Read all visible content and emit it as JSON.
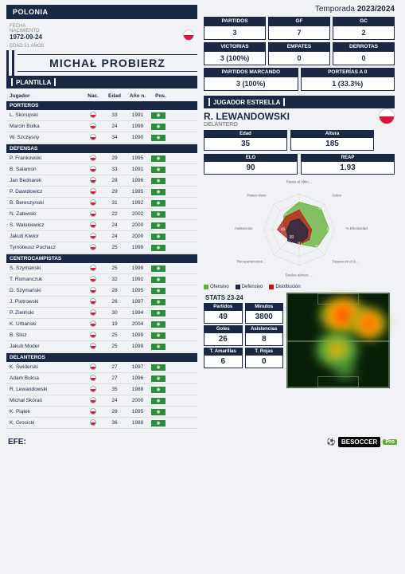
{
  "team": {
    "name": "POLONIA"
  },
  "coach": {
    "birth_label": "FECHA\nNACIMIENTO",
    "birth": "1972-09-24",
    "age_label": "EDAD",
    "age": "51 AÑOS",
    "name": "MICHAŁ PROBIERZ"
  },
  "season": {
    "label": "Temporada",
    "value": "2023/2024"
  },
  "team_stats": {
    "row1": [
      {
        "label": "PARTIDOS",
        "value": "3"
      },
      {
        "label": "GF",
        "value": "7"
      },
      {
        "label": "GC",
        "value": "2"
      }
    ],
    "row2": [
      {
        "label": "VICTORIAS",
        "value": "3 (100%)"
      },
      {
        "label": "EMPATES",
        "value": "0"
      },
      {
        "label": "DERROTAS",
        "value": "0"
      }
    ],
    "row3": [
      {
        "label": "PARTIDOS MARCANDO",
        "value": "3 (100%)"
      },
      {
        "label": "PORTERÍAS A 0",
        "value": "1 (33.3%)"
      }
    ]
  },
  "squad": {
    "title": "PLANTILLA",
    "headers": {
      "player": "Jugador",
      "nat": "Nac.",
      "age": "Edad",
      "year": "Año n.",
      "pos": "Pos."
    },
    "porteros": {
      "label": "PORTEROS",
      "players": [
        {
          "name": "L. Skorupski",
          "age": "33",
          "year": "1991"
        },
        {
          "name": "Marcin Bulka",
          "age": "24",
          "year": "1999"
        },
        {
          "name": "W. Szczęsny",
          "age": "34",
          "year": "1990"
        }
      ]
    },
    "defensas": {
      "label": "DEFENSAS",
      "players": [
        {
          "name": "P. Frankowski",
          "age": "29",
          "year": "1995"
        },
        {
          "name": "B. Salamon",
          "age": "33",
          "year": "1991"
        },
        {
          "name": "Jan Bednarek",
          "age": "28",
          "year": "1996"
        },
        {
          "name": "P. Dawidowicz",
          "age": "29",
          "year": "1995"
        },
        {
          "name": "B. Bereszynski",
          "age": "31",
          "year": "1992"
        },
        {
          "name": "N. Zalewski",
          "age": "22",
          "year": "2002"
        },
        {
          "name": "S. Walukiewicz",
          "age": "24",
          "year": "2000"
        },
        {
          "name": "Jakub Kiwior",
          "age": "24",
          "year": "2000"
        },
        {
          "name": "Tymoteusz Puchacz",
          "age": "25",
          "year": "1999"
        }
      ]
    },
    "centro": {
      "label": "CENTROCAMPISTAS",
      "players": [
        {
          "name": "S. Szymanski",
          "age": "25",
          "year": "1999"
        },
        {
          "name": "T. Romanczuk",
          "age": "32",
          "year": "1991"
        },
        {
          "name": "D. Szymański",
          "age": "28",
          "year": "1995"
        },
        {
          "name": "J. Piotrowski",
          "age": "26",
          "year": "1997"
        },
        {
          "name": "P. Zieliński",
          "age": "30",
          "year": "1994"
        },
        {
          "name": "K. Urbanski",
          "age": "19",
          "year": "2004"
        },
        {
          "name": "B. Slisz",
          "age": "25",
          "year": "1999"
        },
        {
          "name": "Jakub Moder",
          "age": "25",
          "year": "1999"
        }
      ]
    },
    "delanteros": {
      "label": "DELANTEROS",
      "players": [
        {
          "name": "K. Świderski",
          "age": "27",
          "year": "1997"
        },
        {
          "name": "Adam Buksa",
          "age": "27",
          "year": "1996"
        },
        {
          "name": "R. Lewandowski",
          "age": "35",
          "year": "1988"
        },
        {
          "name": "Michał Skóraś",
          "age": "24",
          "year": "2000"
        },
        {
          "name": "K. Piątek",
          "age": "28",
          "year": "1995"
        },
        {
          "name": "K. Grosicki",
          "age": "36",
          "year": "1988"
        }
      ]
    }
  },
  "star": {
    "title": "JUGADOR ESTRELLA",
    "name": "R. LEWANDOWSKI",
    "position": "DELANTERO",
    "age_label": "Edad",
    "age": "35",
    "height_label": "Altura",
    "height": "185",
    "elo_label": "ELO",
    "elo": "90",
    "reap_label": "REAP",
    "reap": "1.93",
    "radar": {
      "axis_labels": [
        "Pases al último tercio con éxito",
        "Goles",
        "% Efectividad",
        "Toques en el área",
        "Duelos aéreos ganados",
        "Recuperaciones en últ. tercio",
        "Asistencias",
        "Pases clave"
      ],
      "offensive": {
        "color": "#5fb030",
        "values": [
          77,
          85,
          84,
          70,
          40,
          30,
          45,
          60
        ]
      },
      "defensive": {
        "color": "#1a2844",
        "values": [
          30,
          20,
          25,
          32,
          40,
          45,
          35,
          33
        ]
      },
      "distribution": {
        "color": "#c01818",
        "values": [
          55,
          30,
          35,
          40,
          42,
          40,
          61,
          52
        ]
      }
    },
    "legend": {
      "off": "Ofensivo",
      "def": "Defensivo",
      "dis": "Distribución"
    },
    "stats_title": "STATS 23-24",
    "stats": [
      {
        "label": "Partidos",
        "value": "49"
      },
      {
        "label": "Minutos",
        "value": "3800"
      },
      {
        "label": "Goles",
        "value": "26"
      },
      {
        "label": "Asistencias",
        "value": "8"
      },
      {
        "label": "T. Amarillas",
        "value": "6"
      },
      {
        "label": "T. Rojas",
        "value": "0"
      }
    ]
  },
  "footer": {
    "efe": "EFE:",
    "besoccer": "BESOCCER",
    "pro": "Pro"
  }
}
